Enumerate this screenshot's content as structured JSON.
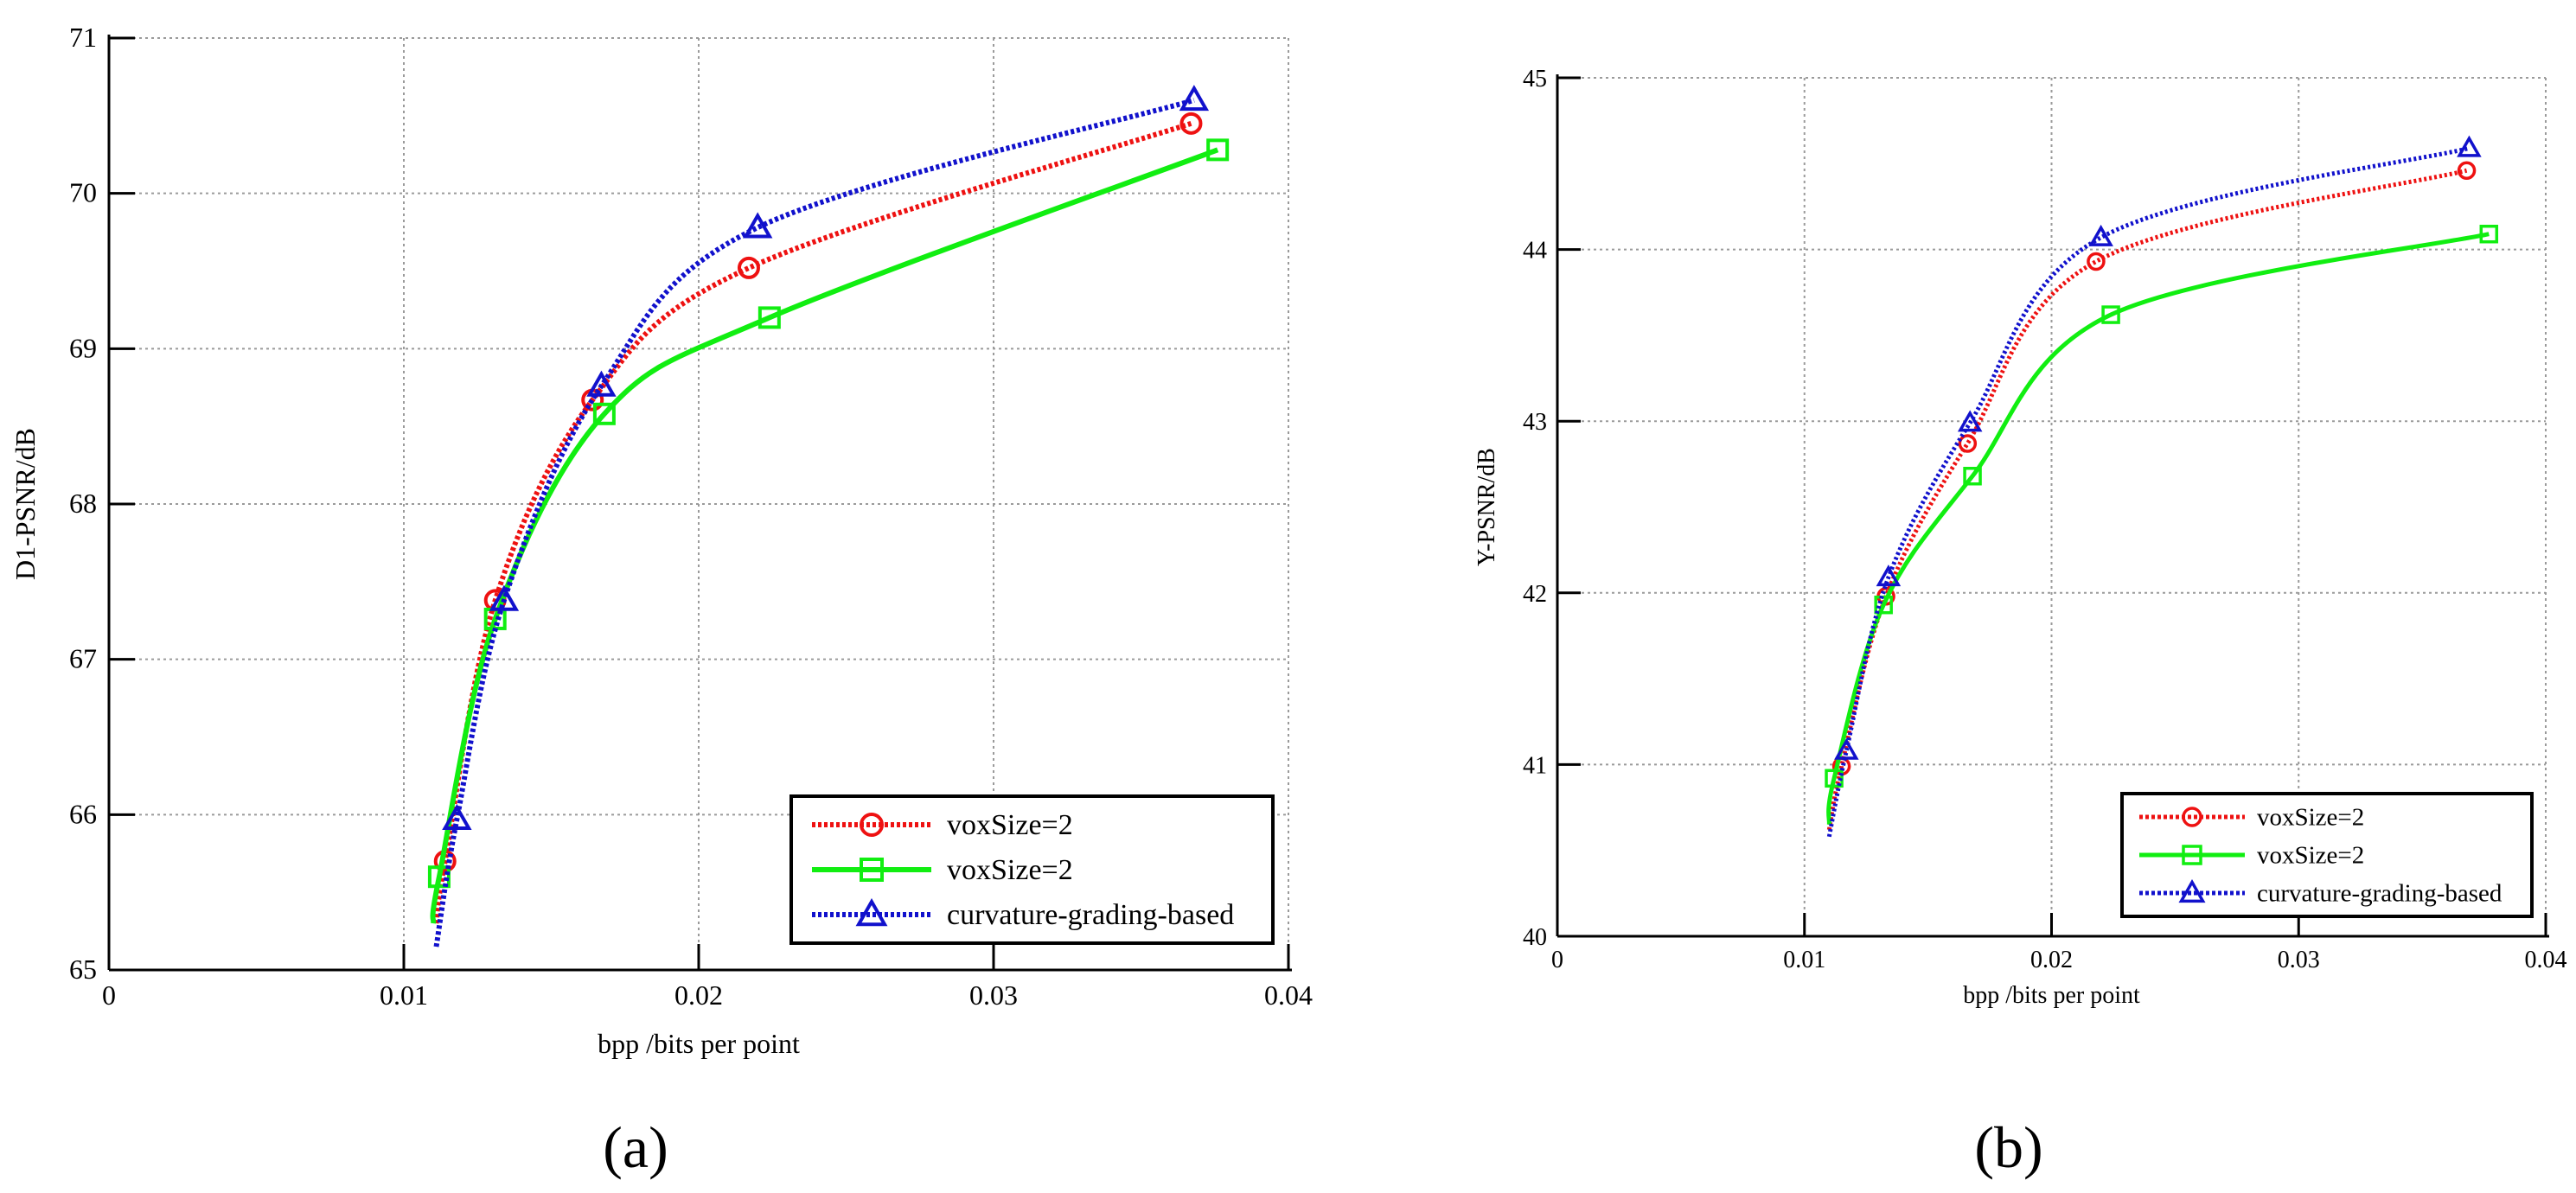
{
  "figure": {
    "panels": [
      "(a)",
      "(b)"
    ]
  },
  "colors": {
    "red": "#ee1111",
    "green": "#11ee11",
    "blue": "#1111cc",
    "grid": "#9a9a9a"
  },
  "chart_data": [
    {
      "type": "line",
      "panel_label": "(a)",
      "title": "",
      "xlabel": "bpp   /bits per point",
      "ylabel": "D1-PSNR/dB",
      "xlim": [
        0,
        0.04
      ],
      "ylim": [
        65,
        71
      ],
      "xticks": [
        0,
        0.01,
        0.02,
        0.03,
        0.04
      ],
      "xtick_labels": [
        "0",
        "0.01",
        "0.02",
        "0.03",
        "0.04"
      ],
      "yticks": [
        65,
        66,
        67,
        68,
        69,
        70,
        71
      ],
      "ytick_labels": [
        "65",
        "66",
        "67",
        "68",
        "69",
        "70",
        "71"
      ],
      "grid": true,
      "legend_position": "bottom-right",
      "series": [
        {
          "name": "voxSize=2",
          "color": "#ee1111",
          "line_style": "dotted",
          "marker": "circle",
          "points": [
            [
              0.0114,
              65.7
            ],
            [
              0.0131,
              67.38
            ],
            [
              0.0164,
              68.67
            ],
            [
              0.0217,
              69.52
            ],
            [
              0.0367,
              70.45
            ]
          ],
          "curve": [
            [
              0.0111,
              65.3
            ],
            [
              0.0114,
              65.7
            ],
            [
              0.0131,
              67.38
            ],
            [
              0.0164,
              68.67
            ],
            [
              0.0217,
              69.52
            ],
            [
              0.0367,
              70.45
            ]
          ]
        },
        {
          "name": "voxSize=2",
          "color": "#11ee11",
          "line_style": "solid",
          "marker": "square",
          "points": [
            [
              0.0112,
              65.6
            ],
            [
              0.0131,
              67.26
            ],
            [
              0.0168,
              68.58
            ],
            [
              0.0224,
              69.2
            ],
            [
              0.0376,
              70.28
            ]
          ],
          "curve": [
            [
              0.011,
              65.3
            ],
            [
              0.0112,
              65.6
            ],
            [
              0.0131,
              67.26
            ],
            [
              0.0168,
              68.58
            ],
            [
              0.0224,
              69.2
            ],
            [
              0.0376,
              70.28
            ]
          ]
        },
        {
          "name": "curvature-grading-based",
          "color": "#1111cc",
          "line_style": "dotted",
          "marker": "triangle",
          "points": [
            [
              0.0118,
              65.97
            ],
            [
              0.0134,
              67.38
            ],
            [
              0.0167,
              68.76
            ],
            [
              0.022,
              69.78
            ],
            [
              0.0368,
              70.6
            ]
          ],
          "curve": [
            [
              0.0111,
              65.15
            ],
            [
              0.0118,
              65.97
            ],
            [
              0.0134,
              67.38
            ],
            [
              0.0167,
              68.76
            ],
            [
              0.022,
              69.78
            ],
            [
              0.0368,
              70.6
            ]
          ]
        }
      ]
    },
    {
      "type": "line",
      "panel_label": "(b)",
      "title": "",
      "xlabel": "bpp   /bits per point",
      "ylabel": "Y-PSNR/dB",
      "xlim": [
        0,
        0.04
      ],
      "ylim": [
        40,
        45
      ],
      "xticks": [
        0,
        0.01,
        0.02,
        0.03,
        0.04
      ],
      "xtick_labels": [
        "0",
        "0.01",
        "0.02",
        "0.03",
        "0.04"
      ],
      "yticks": [
        40,
        41,
        42,
        43,
        44,
        45
      ],
      "ytick_labels": [
        "40",
        "41",
        "42",
        "43",
        "44",
        "45"
      ],
      "grid": true,
      "legend_position": "bottom-right",
      "series": [
        {
          "name": "voxSize=2",
          "color": "#ee1111",
          "line_style": "dotted",
          "marker": "circle",
          "points": [
            [
              0.0115,
              40.99
            ],
            [
              0.0133,
              41.98
            ],
            [
              0.0166,
              42.87
            ],
            [
              0.0218,
              43.93
            ],
            [
              0.0368,
              44.46
            ]
          ],
          "curve": [
            [
              0.011,
              40.62
            ],
            [
              0.0115,
              40.99
            ],
            [
              0.0133,
              41.98
            ],
            [
              0.0166,
              42.87
            ],
            [
              0.0218,
              43.93
            ],
            [
              0.0368,
              44.46
            ]
          ]
        },
        {
          "name": "voxSize=2",
          "color": "#11ee11",
          "line_style": "solid",
          "marker": "square",
          "points": [
            [
              0.0112,
              40.92
            ],
            [
              0.0132,
              41.93
            ],
            [
              0.0168,
              42.68
            ],
            [
              0.0224,
              43.62
            ],
            [
              0.0377,
              44.09
            ]
          ],
          "curve": [
            [
              0.011,
              40.65
            ],
            [
              0.0112,
              40.92
            ],
            [
              0.0132,
              41.93
            ],
            [
              0.0168,
              42.68
            ],
            [
              0.0224,
              43.62
            ],
            [
              0.0377,
              44.09
            ]
          ]
        },
        {
          "name": "curvature-grading-based",
          "color": "#1111cc",
          "line_style": "dotted",
          "marker": "triangle",
          "points": [
            [
              0.0117,
              41.08
            ],
            [
              0.0134,
              42.09
            ],
            [
              0.0167,
              42.99
            ],
            [
              0.022,
              44.07
            ],
            [
              0.0369,
              44.59
            ]
          ],
          "curve": [
            [
              0.011,
              40.58
            ],
            [
              0.0117,
              41.08
            ],
            [
              0.0134,
              42.09
            ],
            [
              0.0167,
              42.99
            ],
            [
              0.022,
              44.07
            ],
            [
              0.0369,
              44.59
            ]
          ]
        }
      ]
    }
  ]
}
